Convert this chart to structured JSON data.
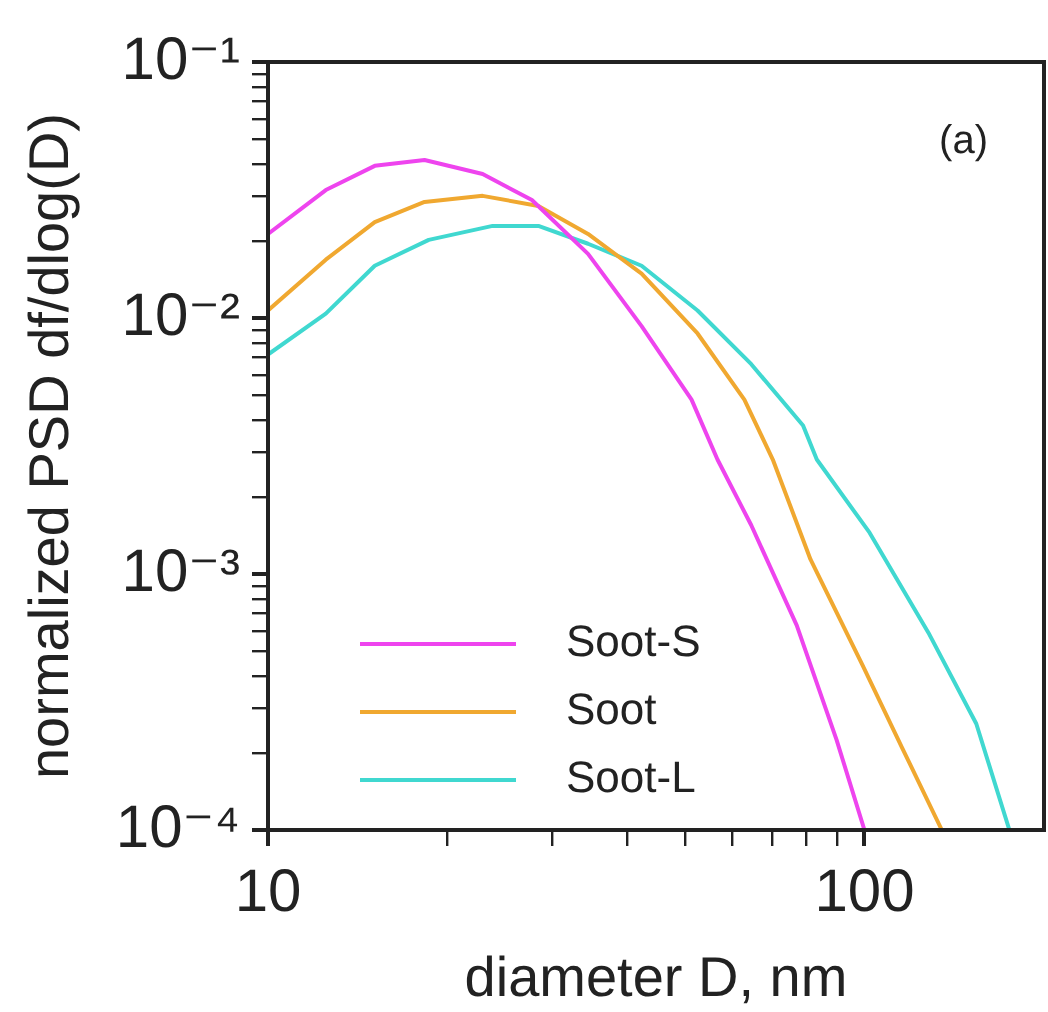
{
  "chart_data": {
    "type": "line",
    "xlabel": "diameter D, nm",
    "ylabel": "normalized PSD df/dlog(D)",
    "log": "xy",
    "grid": false,
    "legend": "bottom left",
    "marker": "none",
    "line_style": "solid",
    "annotations": [
      "(a)"
    ],
    "xlim": [
      10,
      200
    ],
    "ylim": [
      0.0001,
      0.1
    ],
    "xticks": [
      10,
      {
        "value": 20,
        "label": null
      },
      {
        "value": 30,
        "label": null
      },
      {
        "value": 40,
        "label": null
      },
      {
        "value": 50,
        "label": null
      },
      {
        "value": 60,
        "label": null
      },
      {
        "value": 70,
        "label": null
      },
      {
        "value": 80,
        "label": null
      },
      {
        "value": 90,
        "label": null
      },
      100
    ],
    "yticks": [
      {
        "value": 0.0001,
        "label": "10⁻⁴"
      },
      {
        "value": 0.0002,
        "label": null
      },
      {
        "value": 0.0003,
        "label": null
      },
      {
        "value": 0.0004,
        "label": null
      },
      {
        "value": 0.0005,
        "label": null
      },
      {
        "value": 0.0006,
        "label": null
      },
      {
        "value": 0.0007,
        "label": null
      },
      {
        "value": 0.0008,
        "label": null
      },
      {
        "value": 0.0009,
        "label": null
      },
      {
        "value": 0.001,
        "label": "10⁻³"
      },
      {
        "value": 0.002,
        "label": null
      },
      {
        "value": 0.003,
        "label": null
      },
      {
        "value": 0.004,
        "label": null
      },
      {
        "value": 0.005,
        "label": null
      },
      {
        "value": 0.006,
        "label": null
      },
      {
        "value": 0.007,
        "label": null
      },
      {
        "value": 0.008,
        "label": null
      },
      {
        "value": 0.009,
        "label": null
      },
      {
        "value": 0.01,
        "label": "10⁻²"
      },
      {
        "value": 0.02,
        "label": null
      },
      {
        "value": 0.03,
        "label": null
      },
      {
        "value": 0.04,
        "label": null
      },
      {
        "value": 0.05,
        "label": null
      },
      {
        "value": 0.06,
        "label": null
      },
      {
        "value": 0.07,
        "label": null
      },
      {
        "value": 0.08,
        "label": null
      },
      {
        "value": 0.09,
        "label": null
      },
      {
        "value": 0.1,
        "label": "10⁻¹"
      }
    ],
    "series": [
      {
        "name": "Soot-S",
        "color": "#ee44ee",
        "x": [
          10,
          12.5,
          15.1,
          18.3,
          22.9,
          27.7,
          34.4,
          42.3,
          51.3,
          56.7,
          64.6,
          77,
          89.8,
          100
        ],
        "values": [
          0.0213,
          0.0316,
          0.0393,
          0.0414,
          0.0365,
          0.0289,
          0.0178,
          0.0093,
          0.0048,
          0.0028,
          0.00155,
          0.00063,
          0.000225,
          0.0001
        ]
      },
      {
        "name": "Soot",
        "color": "#f0a830",
        "x": [
          10,
          12.5,
          15.1,
          18.3,
          22.9,
          28.4,
          34.4,
          42.3,
          52.5,
          62.9,
          70.2,
          81.2,
          99.3,
          115.6,
          134.8
        ],
        "values": [
          0.0107,
          0.0169,
          0.0237,
          0.0284,
          0.03,
          0.0274,
          0.0213,
          0.0149,
          0.0087,
          0.0048,
          0.0028,
          0.00114,
          0.00044,
          0.00021,
          0.0001
        ]
      },
      {
        "name": "Soot-L",
        "color": "#40d8d0",
        "x": [
          10,
          12.5,
          15.1,
          18.6,
          23.8,
          28.4,
          34.4,
          42.3,
          52.5,
          64.6,
          78.9,
          83.2,
          102,
          128,
          154,
          175
        ],
        "values": [
          0.0072,
          0.0104,
          0.016,
          0.0202,
          0.0229,
          0.0229,
          0.0195,
          0.016,
          0.0107,
          0.0066,
          0.0038,
          0.0028,
          0.00145,
          0.00059,
          0.00026,
          0.0001
        ]
      }
    ]
  }
}
